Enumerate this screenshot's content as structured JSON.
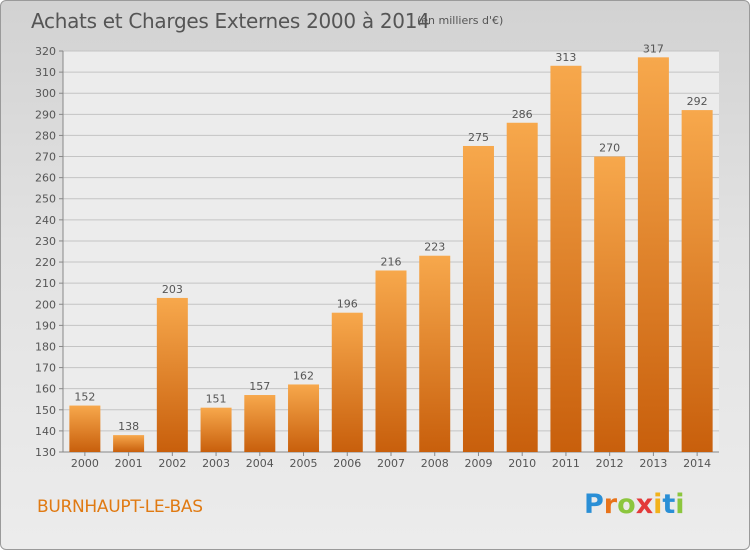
{
  "title": "Achats et Charges Externes 2000 à 2014",
  "subtitle": "(en milliers d'€)",
  "commune": "BURNHAUPT-LE-BAS",
  "logo": {
    "letters": [
      "P",
      "r",
      "o",
      "x",
      "i",
      "t",
      "i"
    ],
    "colors": [
      "#2a8fd6",
      "#e8731a",
      "#8cc63e",
      "#e33a3a",
      "#f2b21b",
      "#2a8fd6",
      "#8cc63e"
    ]
  },
  "colors": {
    "bar_light": "#f7a84c",
    "bar_dark": "#c85f0c",
    "text": "#555555",
    "accent": "#e07a12"
  },
  "chart_data": {
    "type": "bar",
    "title": "Achats et Charges Externes 2000 à 2014",
    "subtitle": "(en milliers d'€)",
    "categories": [
      "2000",
      "2001",
      "2002",
      "2003",
      "2004",
      "2005",
      "2006",
      "2007",
      "2008",
      "2009",
      "2010",
      "2011",
      "2012",
      "2013",
      "2014"
    ],
    "values": [
      152,
      138,
      203,
      151,
      157,
      162,
      196,
      216,
      223,
      275,
      286,
      313,
      270,
      317,
      292
    ],
    "ylim": [
      130,
      320
    ],
    "yticks": [
      130,
      140,
      150,
      160,
      170,
      180,
      190,
      200,
      210,
      220,
      230,
      240,
      250,
      260,
      270,
      280,
      290,
      300,
      310,
      320
    ],
    "grid": true,
    "data_labels": true
  }
}
